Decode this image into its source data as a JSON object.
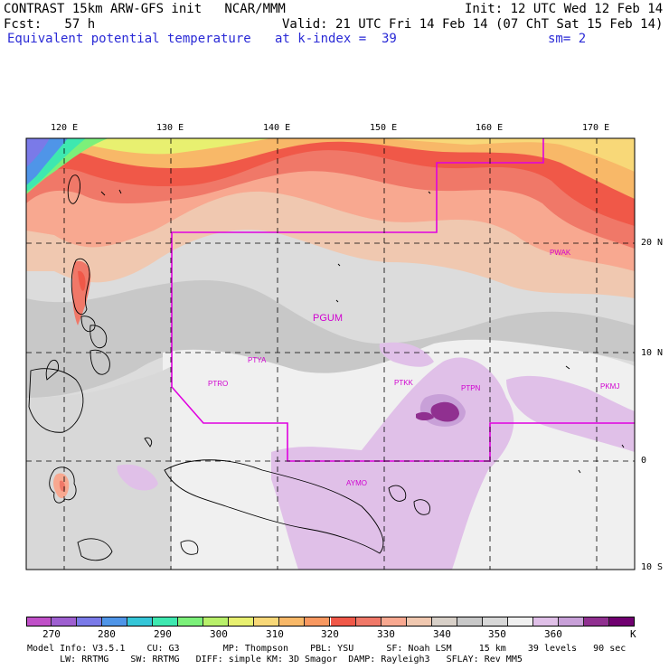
{
  "header": {
    "title_line1": "CONTRAST 15km ARW-GFS init   NCAR/MMM",
    "init": "Init: 12 UTC Wed 12 Feb 14",
    "fcst": "Fcst:   57 h",
    "valid": "Valid: 21 UTC Fri 14 Feb 14 (07 ChT Sat 15 Feb 14)",
    "field": "Equivalent potential temperature",
    "level": "at k-index =  39",
    "smoothing": "sm= 2"
  },
  "axes": {
    "lon_labels": [
      "120 E",
      "130 E",
      "140 E",
      "150 E",
      "160 E",
      "170 E"
    ],
    "lat_labels": [
      "20 N",
      "10 N",
      "0",
      "10 S"
    ]
  },
  "stations": [
    "PGUM",
    "PTYA",
    "PTRO",
    "PTKK",
    "PTPN",
    "PKMJ",
    "PWAK",
    "AYMO"
  ],
  "colorbar": {
    "ticks": [
      "270",
      "280",
      "290",
      "300",
      "310",
      "320",
      "330",
      "340",
      "350",
      "360"
    ],
    "unit": "K",
    "colors": [
      "#c050c8",
      "#9e5fd0",
      "#7a7ae8",
      "#4f95e8",
      "#35c6d8",
      "#3ee8b0",
      "#7cf07a",
      "#b8f06a",
      "#e8f070",
      "#f8d878",
      "#f8b868",
      "#f89860",
      "#f05848",
      "#f07868",
      "#f8a890",
      "#f0c8b0",
      "#d8d0c8",
      "#c8c8c8",
      "#d8d8d8",
      "#f0f0f0",
      "#e0c0e8",
      "#c8a0d8",
      "#903090",
      "#700070"
    ]
  },
  "footer": {
    "line1": "Model Info: V3.5.1    CU: G3        MP: Thompson    PBL: YSU      SF: Noah LSM     15 km    39 levels   90 sec",
    "line2": "      LW: RRTMG    SW: RRTMG   DIFF: simple KM: 3D Smagor  DAMP: Rayleigh3   SFLAY: Rev MM5"
  }
}
